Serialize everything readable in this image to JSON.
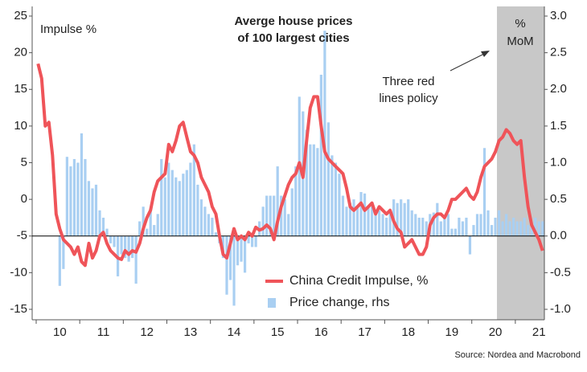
{
  "chart_data": {
    "type": "bar_line",
    "title": [
      "Averge house prices",
      "of 100 largest cities"
    ],
    "y_label": "Impulse %",
    "y2_label": [
      "%",
      "MoM"
    ],
    "annotation": [
      "Three red",
      "lines policy"
    ],
    "source": "Source: Nordea and Macrobond",
    "categories": [
      null,
      null,
      null,
      null,
      null,
      null,
      "10",
      null,
      null,
      null,
      null,
      null,
      null,
      null,
      null,
      null,
      null,
      null,
      "11",
      null,
      null,
      null,
      null,
      null,
      null,
      null,
      null,
      null,
      null,
      null,
      "12",
      null,
      null,
      null,
      null,
      null,
      null,
      null,
      null,
      null,
      null,
      null,
      "13",
      null,
      null,
      null,
      null,
      null,
      null,
      null,
      null,
      null,
      null,
      null,
      "14",
      null,
      null,
      null,
      null,
      null,
      null,
      null,
      null,
      null,
      null,
      null,
      "15",
      null,
      null,
      null,
      null,
      null,
      null,
      null,
      null,
      null,
      null,
      null,
      "16",
      null,
      null,
      null,
      null,
      null,
      null,
      null,
      null,
      null,
      null,
      null,
      "17",
      null,
      null,
      null,
      null,
      null,
      null,
      null,
      null,
      null,
      null,
      null,
      "18",
      null,
      null,
      null,
      null,
      null,
      null,
      null,
      null,
      null,
      null,
      null,
      "19",
      null,
      null,
      null,
      null,
      null,
      null,
      null,
      null,
      null,
      null,
      null,
      "20",
      null,
      null,
      null,
      null,
      null,
      null,
      null,
      null,
      null,
      null,
      null,
      "21",
      null
    ],
    "series": [
      {
        "name": "China Credit Impulse, %",
        "color": "#ef5459",
        "kind": "line",
        "axis": "y",
        "values": [
          18.5,
          16.5,
          10,
          10.5,
          6,
          -2,
          -4,
          -5.5,
          -6,
          -6.5,
          -7.5,
          -6.5,
          -8.5,
          -9,
          -6,
          -8,
          -7,
          -5,
          -4.5,
          -6,
          -7,
          -7.5,
          -8,
          -8.2,
          -7,
          -7.5,
          -7,
          -7.2,
          -6,
          -4,
          -2.5,
          -1.5,
          1,
          2.5,
          3,
          3.5,
          7.5,
          6.5,
          8,
          10,
          10.5,
          8.5,
          6.5,
          6,
          5,
          3,
          2,
          1,
          -1,
          -2,
          -5,
          -7.5,
          -8,
          -6,
          -4,
          -5.5,
          -5,
          -5.5,
          -4.5,
          -5,
          -3.8,
          -4.2,
          -4,
          -3.5,
          -4,
          -5.5,
          -3,
          -1,
          0.5,
          2,
          3,
          3.5,
          5,
          3,
          8,
          12.5,
          14,
          14,
          10,
          6.5,
          5.5,
          5,
          4.5,
          4,
          3.5,
          1.5,
          -1,
          -1.5,
          -1,
          -0.5,
          -1.5,
          -1,
          -0.5,
          -2,
          -1,
          -1.5,
          -2,
          -1.5,
          -3,
          -4,
          -4.5,
          -6.5,
          -6,
          -5.5,
          -6.5,
          -7.5,
          -7.5,
          -6.5,
          -3.5,
          -2.5,
          -2,
          -2,
          -2.5,
          -1.5,
          0,
          0,
          0.5,
          1,
          1.5,
          0.5,
          0,
          1,
          3,
          4.5,
          5,
          5.5,
          6.5,
          8,
          8.5,
          9.5,
          9,
          8,
          7.5,
          8,
          3,
          -1,
          -3.5,
          -4.5,
          -5.5,
          -7
        ]
      },
      {
        "name": "Price change, rhs",
        "color": "#a9cff2",
        "kind": "bar",
        "axis": "y2",
        "values": [
          null,
          null,
          null,
          null,
          null,
          null,
          -0.68,
          -0.45,
          1.08,
          0.95,
          1.05,
          1.0,
          1.4,
          1.05,
          0.75,
          0.65,
          0.7,
          0.35,
          0.25,
          0.1,
          -0.1,
          -0.15,
          -0.55,
          -0.25,
          -0.3,
          -0.35,
          -0.3,
          -0.65,
          0.2,
          0.4,
          0.1,
          0.35,
          0.15,
          0.3,
          1.05,
          0.8,
          1.0,
          0.9,
          0.8,
          0.75,
          0.85,
          0.9,
          1.0,
          1.25,
          0.7,
          0.5,
          0.4,
          0.3,
          0.25,
          0.05,
          -0.1,
          -0.3,
          -0.8,
          -0.6,
          -0.95,
          -0.4,
          -0.35,
          -0.5,
          -0.1,
          -0.15,
          -0.15,
          0.2,
          0.4,
          0.55,
          0.55,
          0.55,
          0.95,
          0.55,
          0.5,
          0.3,
          0.65,
          0.95,
          1.9,
          1.7,
          1.45,
          1.25,
          1.25,
          1.2,
          2.2,
          2.8,
          1.55,
          1.1,
          1.0,
          0.85,
          0.55,
          0.4,
          0.45,
          0.5,
          0.4,
          0.6,
          0.58,
          0.4,
          0.4,
          0.35,
          0.35,
          0.3,
          0.25,
          0.3,
          0.5,
          0.45,
          0.5,
          0.45,
          0.5,
          0.35,
          0.3,
          0.25,
          0.25,
          0.2,
          0.3,
          0.32,
          0.45,
          0.2,
          0.25,
          0.3,
          0.1,
          0.1,
          0.25,
          0.2,
          0.25,
          -0.25,
          0.15,
          0.3,
          0.3,
          1.2,
          0.35,
          0.15,
          0.25,
          0.35,
          0.2,
          0.3,
          0.2,
          0.25,
          0.2,
          0.2,
          0.25,
          0.15,
          0.2,
          0.25,
          0.2,
          0.2
        ]
      }
    ],
    "ylim": [
      -15,
      25
    ],
    "yticks": [
      -15,
      -10,
      -5,
      0,
      5,
      10,
      15,
      20,
      25
    ],
    "y2lim": [
      -1.0,
      3.0
    ],
    "y2ticks": [
      {
        "value": -1.0,
        "label": "-1.0"
      },
      {
        "value": -0.5,
        "label": "-0.5"
      },
      {
        "value": 0,
        "label": "0.0"
      },
      {
        "value": 0.5,
        "label": "0.5"
      },
      {
        "value": 1.0,
        "label": "1.0"
      },
      {
        "value": 1.5,
        "label": "1.5"
      },
      {
        "value": 2.0,
        "label": "2.0"
      },
      {
        "value": 2.5,
        "label": "2.5"
      },
      {
        "value": 3.0,
        "label": "3.0"
      }
    ]
  }
}
